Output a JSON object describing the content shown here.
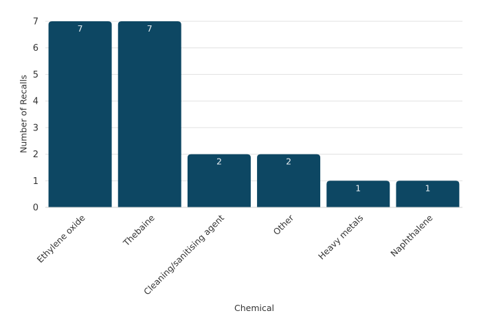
{
  "chart_data": {
    "type": "bar",
    "title": "",
    "xlabel": "Chemical",
    "ylabel": "Number of Recalls",
    "categories": [
      "Ethylene oxide",
      "Thebaine",
      "Cleaning/sanitising agent",
      "Other",
      "Heavy metals",
      "Naphthalene"
    ],
    "values": [
      7,
      7,
      2,
      2,
      1,
      1
    ],
    "data_labels": [
      "7",
      "7",
      "2",
      "2",
      "1",
      "1"
    ],
    "ylim": [
      0,
      7
    ],
    "yticks": [
      0,
      1,
      2,
      3,
      4,
      5,
      6,
      7
    ],
    "grid": true,
    "legend": null,
    "colors": {
      "bar": "#0d4763",
      "grid": "#e0e0e0",
      "label_on_bar": "#e8eef2"
    }
  }
}
